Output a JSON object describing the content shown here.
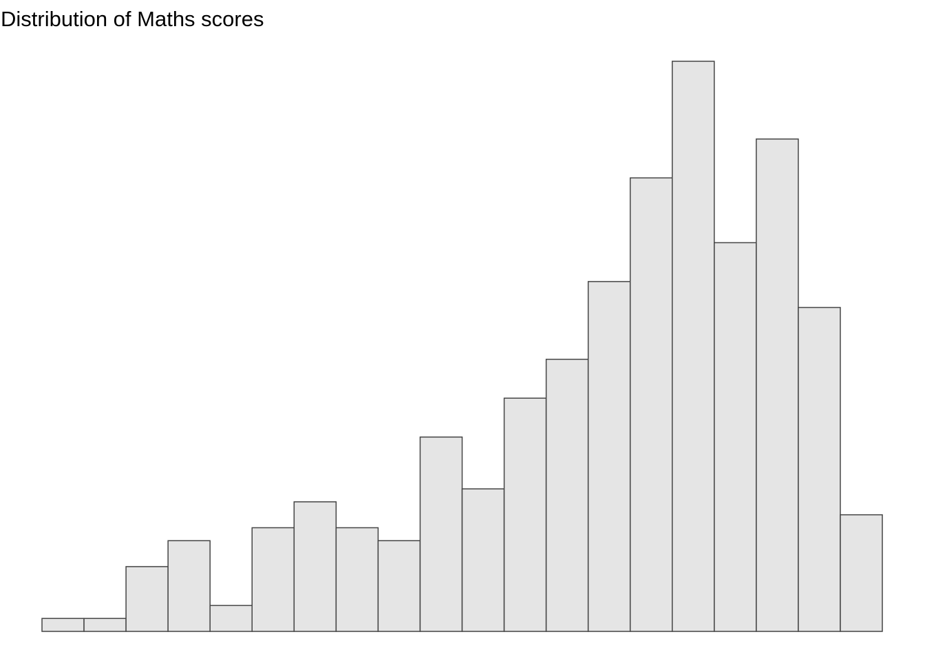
{
  "chart_data": {
    "type": "histogram",
    "title": "Distribution of Maths scores",
    "bins": [
      0,
      1,
      2,
      3,
      4,
      5,
      6,
      7,
      8,
      9,
      10,
      11,
      12,
      13,
      14,
      15,
      16,
      17,
      18,
      19,
      20
    ],
    "counts": [
      1,
      1,
      5,
      7,
      2,
      8,
      10,
      8,
      7,
      15,
      11,
      18,
      21,
      27,
      35,
      44,
      30,
      38,
      25,
      9
    ],
    "color": "#e5e5e5",
    "edgecolor": "#444444",
    "xlim": [
      0,
      20
    ],
    "ylim": [
      0,
      44
    ]
  }
}
